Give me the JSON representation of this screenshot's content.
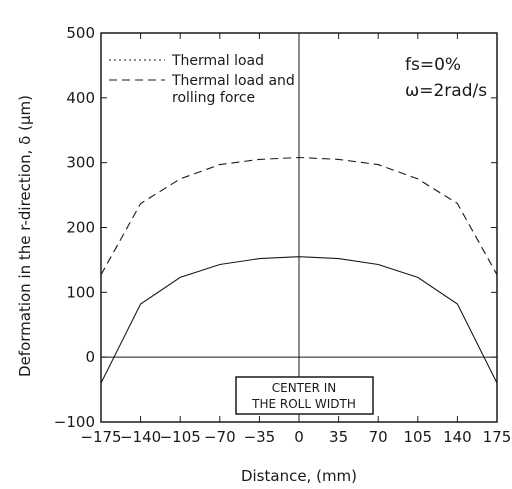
{
  "chart_data": {
    "type": "line",
    "xlabel": "Distance, (mm)",
    "ylabel": "Deformation in the r-direction, δ (μm)",
    "xlim": [
      -175,
      175
    ],
    "ylim": [
      -100,
      500
    ],
    "x_ticks": [
      "-175",
      "-140",
      "-105",
      "-70",
      "-35",
      "0",
      "35",
      "70",
      "105",
      "140",
      "175"
    ],
    "y_ticks": [
      "-100",
      "0",
      "100",
      "200",
      "300",
      "400",
      "500"
    ],
    "x": [
      -175,
      -140,
      -105,
      -70,
      -35,
      0,
      35,
      70,
      105,
      140,
      175
    ],
    "series": [
      {
        "name": "Thermal load",
        "style": "solid",
        "values": [
          -40,
          82,
          123,
          143,
          152,
          155,
          152,
          143,
          123,
          82,
          -40
        ]
      },
      {
        "name": "Thermal load and rolling force",
        "style": "dashed",
        "values": [
          127,
          237,
          275,
          297,
          305,
          308,
          305,
          297,
          275,
          237,
          127
        ]
      }
    ],
    "legend_entries": [
      "Thermal load",
      "Thermal load and",
      "rolling force"
    ],
    "legend_position": "top-left",
    "conditions": [
      "fs=0%",
      "ω=2rad/s"
    ],
    "annotation_lines": [
      "CENTER IN",
      "THE ROLL WIDTH"
    ],
    "grid": false,
    "zero_line": true,
    "center_line": true
  }
}
